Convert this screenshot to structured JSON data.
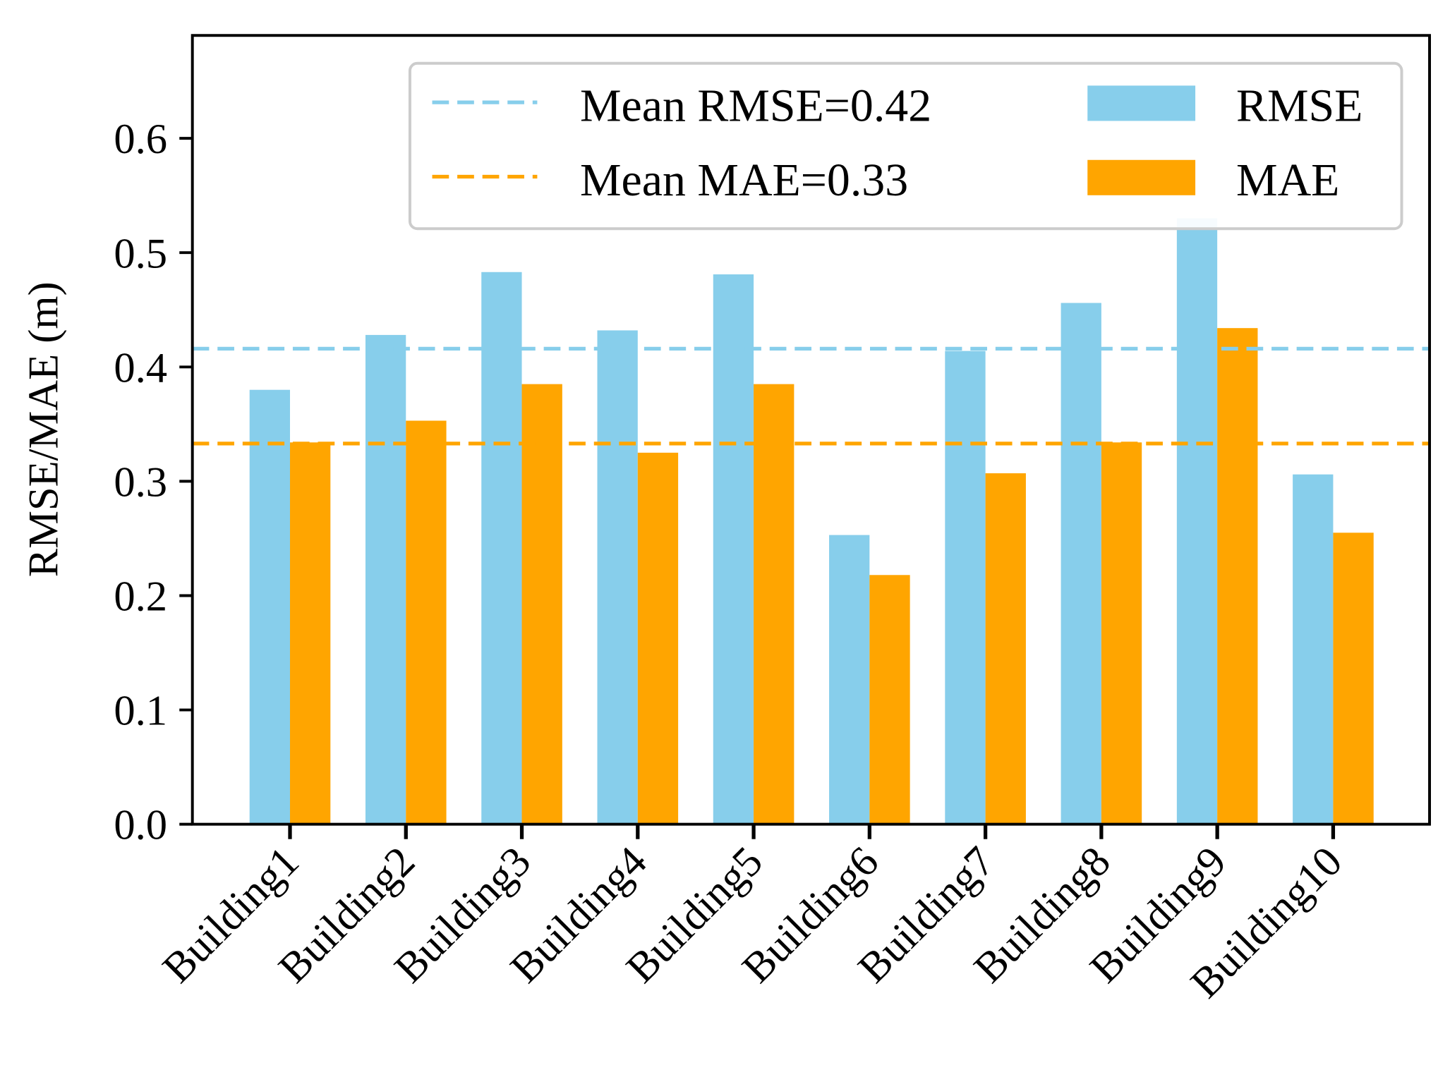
{
  "chart_data": {
    "type": "bar",
    "categories": [
      "Building1",
      "Building2",
      "Building3",
      "Building4",
      "Building5",
      "Building6",
      "Building7",
      "Building8",
      "Building9",
      "Building10"
    ],
    "series": [
      {
        "name": "RMSE",
        "color": "#87CEEB",
        "values": [
          0.38,
          0.428,
          0.483,
          0.432,
          0.481,
          0.253,
          0.414,
          0.456,
          0.53,
          0.306
        ]
      },
      {
        "name": "MAE",
        "color": "#FFA500",
        "values": [
          0.334,
          0.353,
          0.385,
          0.325,
          0.385,
          0.218,
          0.307,
          0.334,
          0.434,
          0.255
        ]
      }
    ],
    "reference_lines": [
      {
        "label": "Mean RMSE=0.42",
        "value": 0.416,
        "color": "#87CEEB",
        "style": "dashed"
      },
      {
        "label": "Mean MAE=0.33",
        "value": 0.333,
        "color": "#FFA500",
        "style": "dashed"
      }
    ],
    "xlabel": "",
    "ylabel": "RMSE/MAE (m)",
    "ylim": [
      0,
      0.69
    ],
    "yticks": [
      "0.0",
      "0.1",
      "0.2",
      "0.3",
      "0.4",
      "0.5",
      "0.6"
    ],
    "grid": false,
    "legend": "top-right"
  }
}
